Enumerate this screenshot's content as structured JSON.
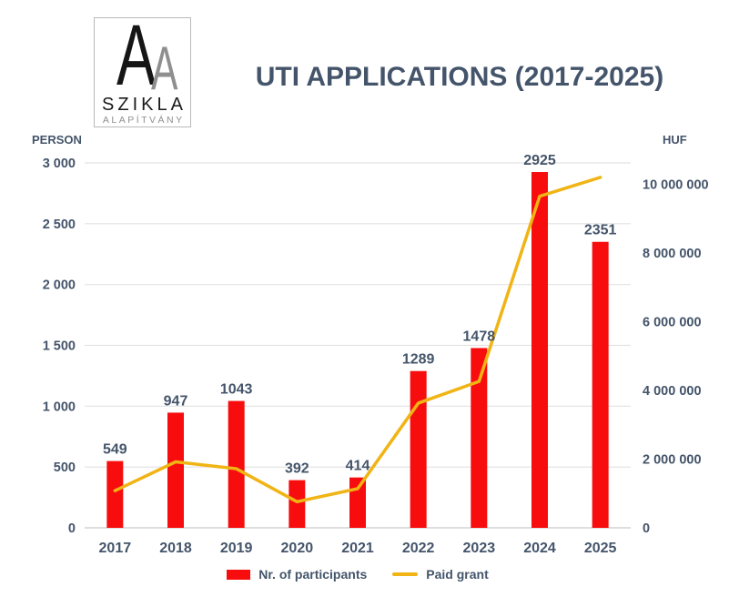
{
  "logo": {
    "letter_primary": "A",
    "letter_secondary": "A",
    "name": "SZIKLA",
    "subtitle": "ALAPÍTVÁNY"
  },
  "colors": {
    "text": "#44546A",
    "bar": "#F70D0D",
    "line": "#F0B414",
    "grid": "#E2E2E2",
    "axis_line": "#C9C9C9",
    "background": "#FFFFFF"
  },
  "chart_data": {
    "type": "combo-bar-line",
    "title": "UTI APPLICATIONS (2017-2025)",
    "categories": [
      "2017",
      "2018",
      "2019",
      "2020",
      "2021",
      "2022",
      "2023",
      "2024",
      "2025"
    ],
    "series": [
      {
        "name": "Nr. of participants",
        "chart_type": "bar",
        "axis": "left",
        "color": "#F70D0D",
        "values": [
          549,
          947,
          1043,
          392,
          414,
          1289,
          1478,
          2925,
          2351
        ],
        "data_labels_shown": true
      },
      {
        "name": "Paid grant",
        "chart_type": "line",
        "axis": "right",
        "color": "#F0B414",
        "values": [
          1080000,
          1920000,
          1720000,
          760000,
          1140000,
          3630000,
          4260000,
          9650000,
          10200000
        ],
        "values_estimated": true,
        "data_labels_shown": false
      }
    ],
    "left_axis": {
      "title": "PERSON",
      "min": 0,
      "max": 3000,
      "tick_values": [
        0,
        500,
        1000,
        1500,
        2000,
        2500,
        3000
      ],
      "tick_labels": [
        "0",
        "500",
        "1 000",
        "1 500",
        "2 000",
        "2 500",
        "3 000"
      ]
    },
    "right_axis": {
      "title": "HUF",
      "min": 0,
      "max_at_plot_top": 10620000,
      "tick_values": [
        0,
        2000000,
        4000000,
        6000000,
        8000000,
        10000000
      ],
      "tick_labels": [
        "0",
        "2 000 000",
        "4 000 000",
        "6 000 000",
        "8 000 000",
        "10 000 000"
      ]
    },
    "legend": [
      {
        "label": "Nr. of participants",
        "swatch": "bar",
        "color": "#F70D0D"
      },
      {
        "label": "Paid grant",
        "swatch": "line",
        "color": "#F0B414"
      }
    ],
    "gridlines": true,
    "legend_position": "bottom"
  }
}
